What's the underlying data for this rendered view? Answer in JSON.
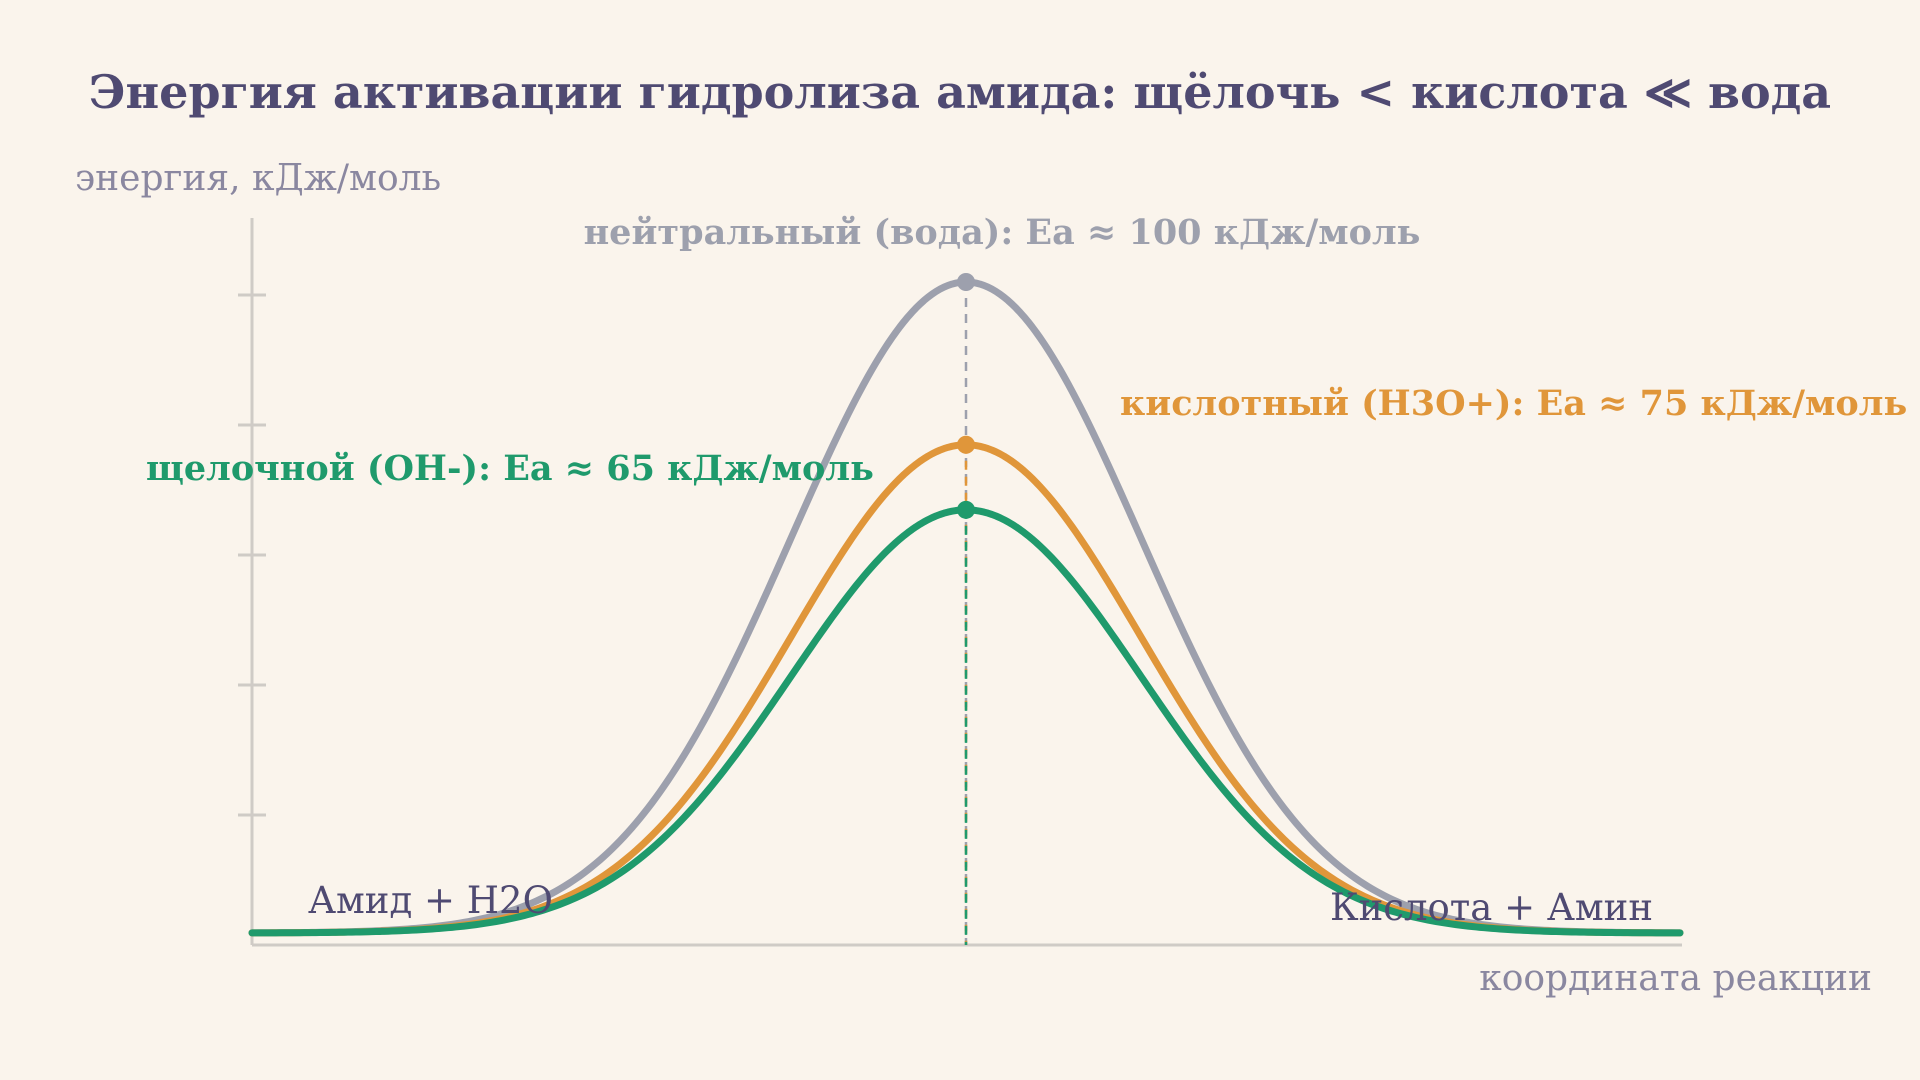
{
  "chart_data": {
    "type": "line",
    "title": "Энергия активации гидролиза амида: щёлочь < кислота ≪ вода",
    "xlabel": "координата реакции",
    "ylabel": "энергия, кДж/моль",
    "ylim": [
      0,
      100
    ],
    "y_ticks_labeled": false,
    "grid": false,
    "start_label": "Амид + H2O",
    "end_label": "Кислота + Амин",
    "series": [
      {
        "name": "нейтральный (вода)",
        "label": "нейтральный (вода): Ea ≈ 100 кДж/моль",
        "ea": 100,
        "color": "#9da0ad"
      },
      {
        "name": "кислотный (H3O+)",
        "label": "кислотный (H3O+): Ea ≈ 75 кДж/моль",
        "ea": 75,
        "color": "#e0963a"
      },
      {
        "name": "щелочной (OH-)",
        "label": "щелочной (OH-): Ea ≈ 65 кДж/моль",
        "ea": 65,
        "color": "#1f9a6c"
      }
    ]
  }
}
